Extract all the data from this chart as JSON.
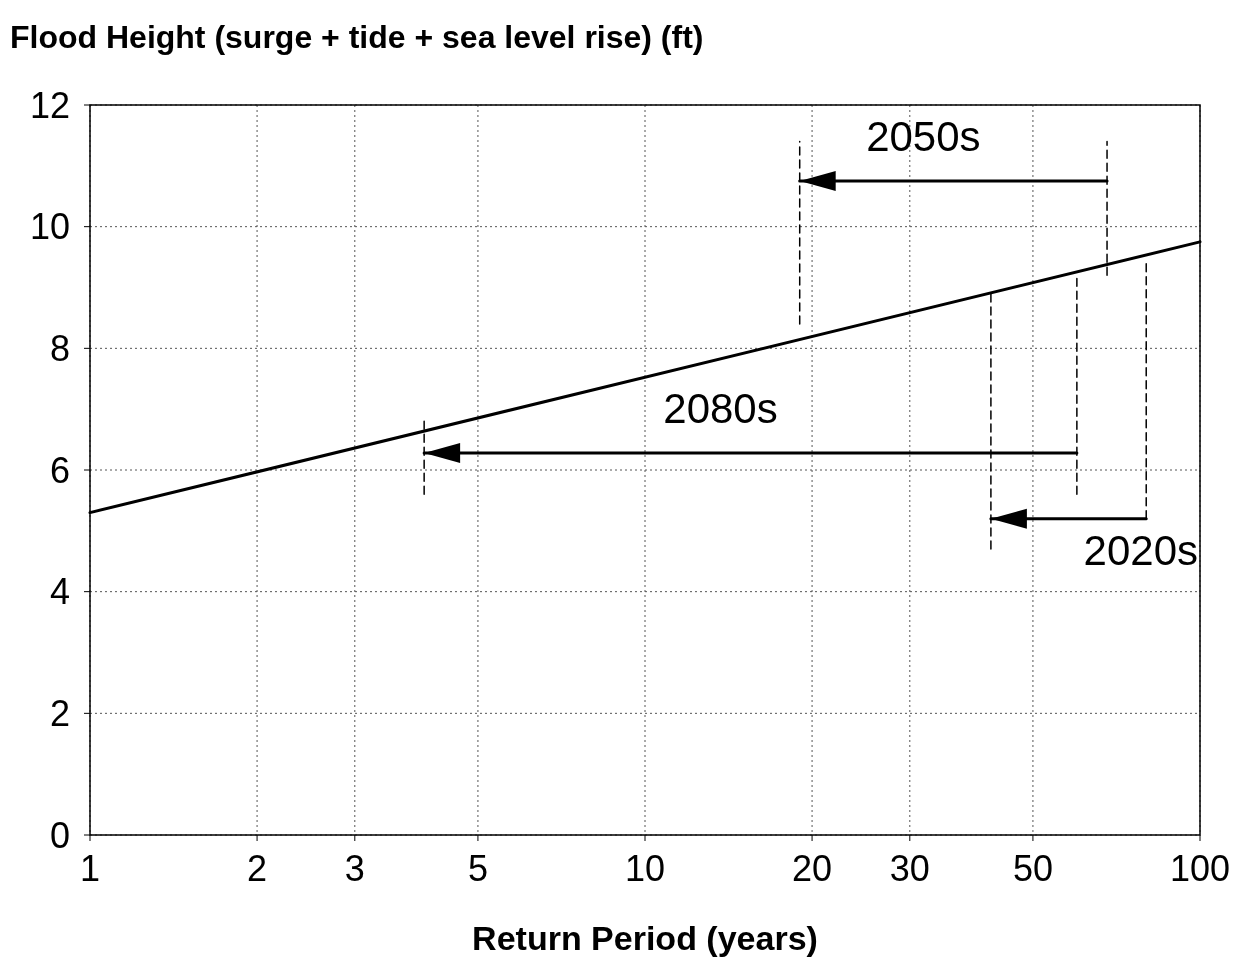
{
  "chart_data": {
    "type": "line",
    "ylabel": "Flood Height (surge + tide + sea level rise) (ft)",
    "xlabel": "Return Period (years)",
    "log": "x",
    "xlim": [
      1,
      100
    ],
    "xticks": [
      1,
      2,
      3,
      5,
      10,
      20,
      30,
      50,
      100
    ],
    "ylim": [
      0,
      12
    ],
    "yticks": [
      0,
      2,
      4,
      6,
      8,
      10,
      12
    ],
    "grid": true,
    "series": [
      {
        "color": "#000000",
        "x": [
          1,
          100
        ],
        "values": [
          5.3,
          9.75
        ]
      },
      {
        "name": "2050s",
        "color": "#000000",
        "x": [
          68,
          19
        ],
        "values": [
          10.75,
          10.75
        ]
      },
      {
        "name": "2080s",
        "color": "#000000",
        "x": [
          60,
          4
        ],
        "values": [
          6.28,
          6.28
        ]
      },
      {
        "name": "2020s",
        "color": "#000000",
        "x": [
          80,
          42
        ],
        "values": [
          5.2,
          5.2
        ]
      },
      {
        "color": "#000000",
        "x": [
          19,
          19
        ],
        "values": [
          8.4,
          11.4
        ],
        "line_style": "dashed"
      },
      {
        "color": "#000000",
        "x": [
          68,
          68
        ],
        "values": [
          9.2,
          11.4
        ],
        "line_style": "dashed"
      },
      {
        "color": "#000000",
        "x": [
          4,
          4
        ],
        "values": [
          5.6,
          6.8
        ],
        "line_style": "dashed"
      },
      {
        "color": "#000000",
        "x": [
          60,
          60
        ],
        "values": [
          5.6,
          9.15
        ],
        "line_style": "dashed"
      },
      {
        "color": "#000000",
        "x": [
          42,
          42
        ],
        "values": [
          4.7,
          8.9
        ],
        "line_style": "dashed"
      },
      {
        "color": "#000000",
        "x": [
          80,
          80
        ],
        "values": [
          5.2,
          9.4
        ],
        "line_style": "dashed"
      }
    ]
  }
}
